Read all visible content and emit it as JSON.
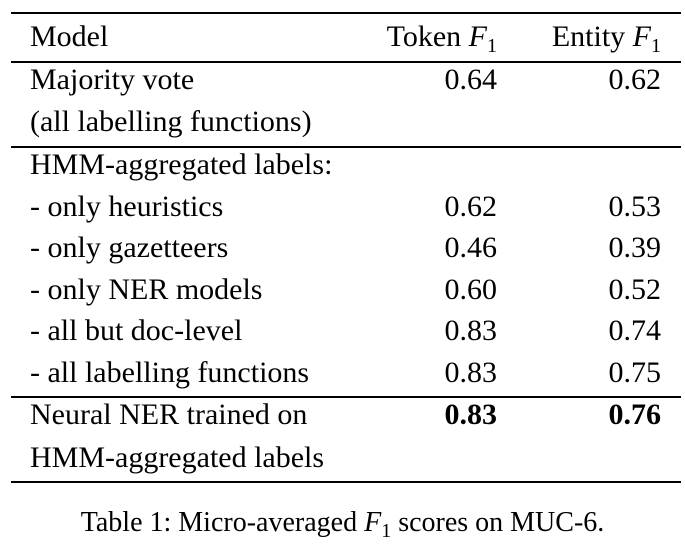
{
  "table": {
    "header": {
      "model": "Model",
      "token_prefix": "Token",
      "entity_prefix": "Entity",
      "f1_symbol": "F",
      "f1_subscript": "1"
    },
    "rows": [
      {
        "model": "Majority vote",
        "token": "0.64",
        "entity": "0.62"
      },
      {
        "model": "(all labelling functions)",
        "token": "",
        "entity": ""
      },
      {
        "model": "HMM-aggregated labels:",
        "token": "",
        "entity": ""
      },
      {
        "model": "- only heuristics",
        "token": "0.62",
        "entity": "0.53"
      },
      {
        "model": "- only gazetteers",
        "token": "0.46",
        "entity": "0.39"
      },
      {
        "model": "- only NER models",
        "token": "0.60",
        "entity": "0.52"
      },
      {
        "model": "- all but doc-level",
        "token": "0.83",
        "entity": "0.74"
      },
      {
        "model": "- all labelling functions",
        "token": "0.83",
        "entity": "0.75"
      },
      {
        "model": "Neural NER trained on",
        "token": "0.83",
        "entity": "0.76"
      },
      {
        "model": "HMM-aggregated labels",
        "token": "",
        "entity": ""
      }
    ]
  },
  "caption": {
    "prefix": "Table 1: Micro-averaged",
    "symbol": "F",
    "subscript": "1",
    "suffix": "scores on MUC-6."
  }
}
